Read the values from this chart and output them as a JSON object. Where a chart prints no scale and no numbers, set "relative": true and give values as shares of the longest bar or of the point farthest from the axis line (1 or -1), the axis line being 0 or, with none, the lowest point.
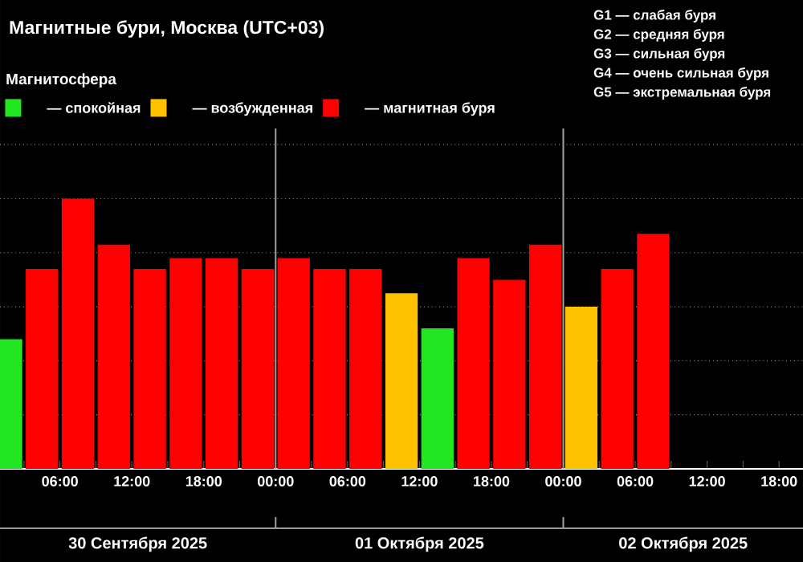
{
  "chart_data": {
    "type": "bar",
    "title": "Магнитные бури, Москва (UTC+03)",
    "legend_title": "Магнитосфера",
    "relative": true,
    "series": [
      {
        "name": "— спокойная",
        "color": "#22e622",
        "x": [
          "2025-09-30T01:30",
          "2025-10-01T13:30"
        ],
        "values": [
          0.48,
          0.52
        ]
      },
      {
        "name": "— возбужденная",
        "color": "#ffc000",
        "x": [
          "2025-10-01T10:30",
          "2025-10-02T01:30"
        ],
        "values": [
          0.65,
          0.6
        ]
      },
      {
        "name": "— магнитная буря",
        "color": "#ff0000",
        "x": [
          "2025-09-30T04:30",
          "2025-09-30T07:30",
          "2025-09-30T10:30",
          "2025-09-30T13:30",
          "2025-09-30T16:30",
          "2025-09-30T19:30",
          "2025-09-30T22:30",
          "2025-10-01T01:30",
          "2025-10-01T04:30",
          "2025-10-01T07:30",
          "2025-10-01T16:30",
          "2025-10-01T19:30",
          "2025-10-01T22:30",
          "2025-10-02T04:30",
          "2025-10-02T07:30"
        ],
        "values": [
          0.74,
          1,
          0.83,
          0.74,
          0.78,
          0.78,
          0.74,
          0.78,
          0.74,
          0.74,
          0.78,
          0.7,
          0.83,
          0.74,
          0.87
        ]
      }
    ],
    "xlim": [
      "2025-09-30T01:00",
      "2025-10-02T20:00"
    ],
    "xticks": [
      {
        "value": "2025-09-30T03:00",
        "label": null
      },
      {
        "value": "2025-09-30T06:00",
        "label": "06:00"
      },
      {
        "value": "2025-09-30T09:00",
        "label": null
      },
      {
        "value": "2025-09-30T12:00",
        "label": "12:00"
      },
      {
        "value": "2025-09-30T15:00",
        "label": null
      },
      {
        "value": "2025-09-30T18:00",
        "label": "18:00"
      },
      {
        "value": "2025-09-30T21:00",
        "label": null
      },
      {
        "value": "2025-10-01T00:00",
        "label": "00:00"
      },
      {
        "value": "2025-10-01T03:00",
        "label": null
      },
      {
        "value": "2025-10-01T06:00",
        "label": "06:00"
      },
      {
        "value": "2025-10-01T09:00",
        "label": null
      },
      {
        "value": "2025-10-01T12:00",
        "label": "12:00"
      },
      {
        "value": "2025-10-01T15:00",
        "label": null
      },
      {
        "value": "2025-10-01T18:00",
        "label": "18:00"
      },
      {
        "value": "2025-10-01T21:00",
        "label": null
      },
      {
        "value": "2025-10-02T00:00",
        "label": "00:00"
      },
      {
        "value": "2025-10-02T03:00",
        "label": null
      },
      {
        "value": "2025-10-02T06:00",
        "label": "06:00"
      },
      {
        "value": "2025-10-02T09:00",
        "label": null
      },
      {
        "value": "2025-10-02T12:00",
        "label": "12:00"
      },
      {
        "value": "2025-10-02T15:00",
        "label": null
      },
      {
        "value": "2025-10-02T18:00",
        "label": "18:00"
      }
    ],
    "ref_lines": [
      {
        "axis": "x",
        "value": "2025-10-01T00:00",
        "color": "#a0a0a0"
      },
      {
        "axis": "x",
        "value": "2025-10-02T00:00",
        "color": "#a0a0a0"
      }
    ],
    "grid": "y",
    "legend": "top left",
    "annotations": [
      "G1 — слабая буря",
      "G2 — средняя буря",
      "G3 — сильная буря",
      "G4 — очень сильная буря",
      "G5 — экстремальная буря",
      "30 Сентября 2025",
      "01 Октября 2025",
      "02 Октября 2025"
    ]
  }
}
